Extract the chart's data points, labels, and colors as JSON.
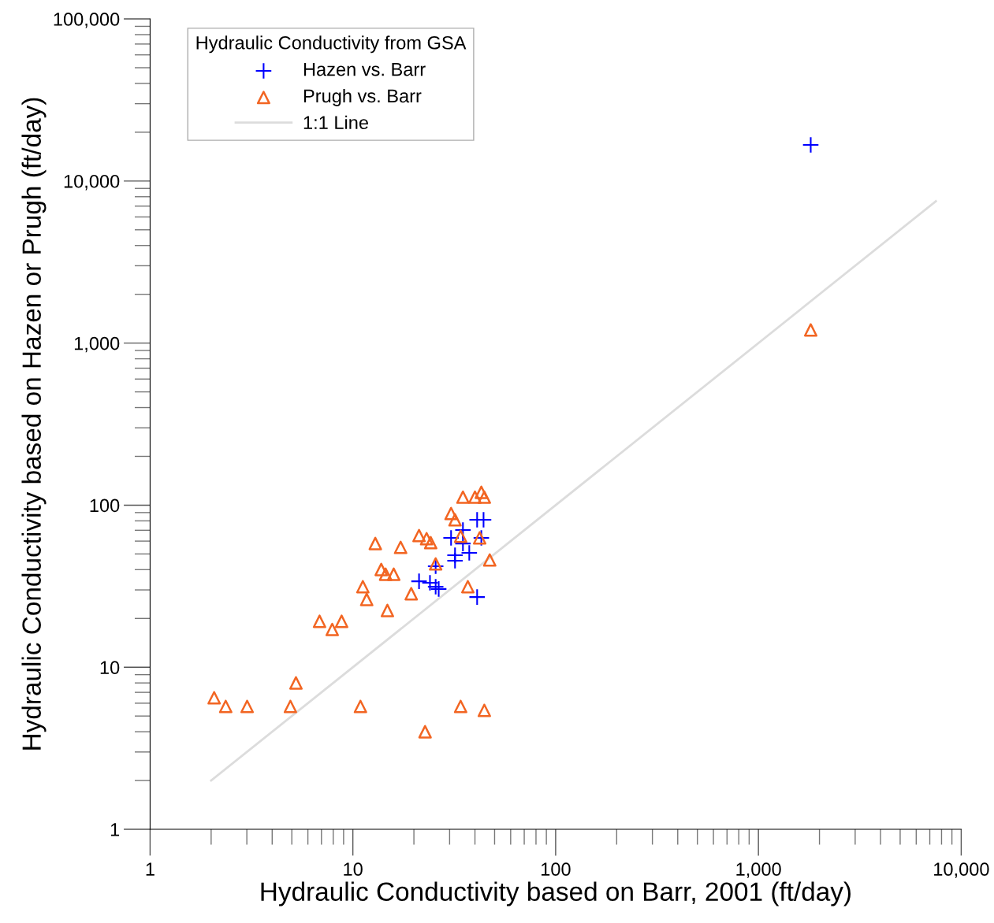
{
  "chart_data": {
    "type": "scatter",
    "xlabel": "Hydraulic Conductivity based on Barr, 2001 (ft/day)",
    "ylabel": "Hydraulic Conductivity based on Hazen or Prugh (ft/day)",
    "legend_title": "Hydraulic Conductivity from GSA",
    "legend": "top left",
    "log": "xy",
    "grid": false,
    "xlim": [
      1,
      10000
    ],
    "ylim": [
      1,
      100000
    ],
    "xticks": [
      1,
      {
        "value": 10,
        "label": "10"
      },
      {
        "value": 100,
        "label": "100"
      },
      {
        "value": 1000,
        "label": "1,000"
      },
      {
        "value": 10000,
        "label": "10,000"
      }
    ],
    "yticks": [
      1,
      {
        "value": 10,
        "label": "10"
      },
      {
        "value": 100,
        "label": "100"
      },
      {
        "value": 1000,
        "label": "1,000"
      },
      {
        "value": 10000,
        "label": "10,000"
      },
      {
        "value": 100000,
        "label": "100,000"
      }
    ],
    "series": [
      {
        "name": "Hazen vs. Barr",
        "color": "#0000ff",
        "marker": "cross",
        "x": [
          1811,
          21.2,
          24.0,
          25.6,
          26.5,
          25.6,
          31.9,
          31.9,
          30.5,
          34.9,
          34.9,
          37.5,
          41.0,
          44.1,
          43.0,
          41.0
        ],
        "values": [
          16700,
          33.9,
          33.2,
          31.4,
          30.4,
          42.0,
          45.4,
          49.1,
          62.8,
          70.2,
          58.0,
          50.8,
          81.2,
          81.2,
          62.8,
          27.1
        ]
      },
      {
        "name": "Prugh vs. Barr",
        "color": "#f26522",
        "marker": "triangle",
        "x": [
          2.07,
          2.36,
          3.01,
          4.92,
          5.24,
          10.9,
          22.7,
          34.0,
          44.5,
          6.85,
          7.91,
          8.8,
          11.2,
          11.7,
          14.8,
          13.8,
          14.5,
          15.9,
          12.9,
          17.2,
          19.4,
          21.2,
          23.1,
          24.2,
          25.6,
          30.5,
          31.9,
          34.9,
          40.0,
          43.0,
          44.5,
          42.2,
          34.0,
          47.3,
          36.9,
          1811
        ],
        "values": [
          6.48,
          5.73,
          5.73,
          5.73,
          8.0,
          5.73,
          4.0,
          5.73,
          5.42,
          19.2,
          17.1,
          19.2,
          31.4,
          26.2,
          22.4,
          40.1,
          37.5,
          37.5,
          58.0,
          54.9,
          28.4,
          64.9,
          62.1,
          58.7,
          43.4,
          88.8,
          81.2,
          112,
          112,
          120,
          112,
          62.8,
          64.2,
          45.9,
          31.4,
          1205
        ]
      },
      {
        "name": "1:1 Line",
        "type": "line",
        "color": "#dcdcdc",
        "marker": "none",
        "line_style": "solid",
        "x": [
          2,
          7500
        ],
        "values": [
          2,
          7500
        ]
      }
    ]
  }
}
